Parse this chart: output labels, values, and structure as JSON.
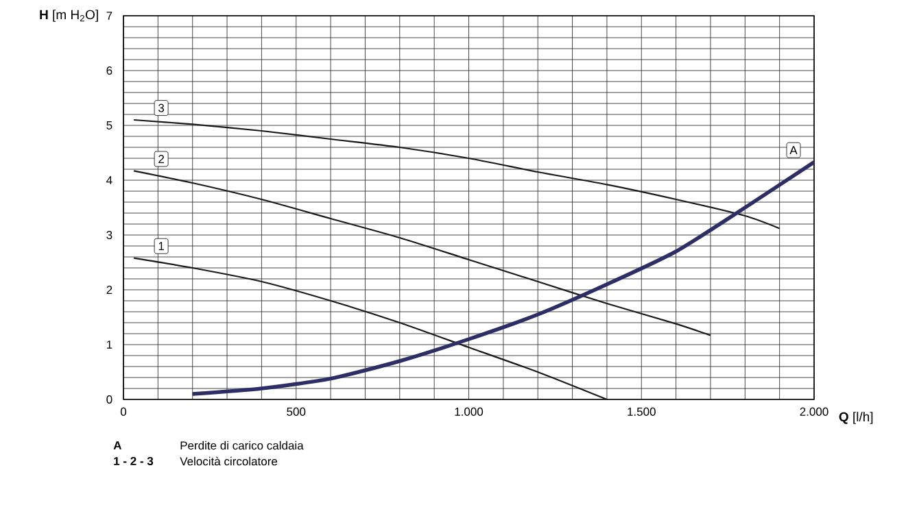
{
  "chart_data": {
    "type": "line",
    "xlabel": "**Q** [l/h]",
    "ylabel": "**H** [m H$_{2}$O]",
    "xlim": [
      0,
      2000
    ],
    "ylim": [
      0,
      7
    ],
    "xticks": [
      0,
      {
        "value": 100,
        "label": null
      },
      {
        "value": 200,
        "label": null
      },
      {
        "value": 300,
        "label": null
      },
      {
        "value": 400,
        "label": null
      },
      500,
      {
        "value": 600,
        "label": null
      },
      {
        "value": 700,
        "label": null
      },
      {
        "value": 800,
        "label": null
      },
      {
        "value": 900,
        "label": null
      },
      {
        "value": 1000,
        "label": "1.000"
      },
      {
        "value": 1100,
        "label": null
      },
      {
        "value": 1200,
        "label": null
      },
      {
        "value": 1300,
        "label": null
      },
      {
        "value": 1400,
        "label": null
      },
      {
        "value": 1500,
        "label": "1.500"
      },
      {
        "value": 1600,
        "label": null
      },
      {
        "value": 1700,
        "label": null
      },
      {
        "value": 1800,
        "label": null
      },
      {
        "value": 1900,
        "label": null
      },
      {
        "value": 2000,
        "label": "2.000"
      }
    ],
    "yticks": [
      0,
      {
        "value": 0.2,
        "label": null
      },
      {
        "value": 0.4,
        "label": null
      },
      {
        "value": 0.6,
        "label": null
      },
      {
        "value": 0.8,
        "label": null
      },
      1,
      {
        "value": 1.2,
        "label": null
      },
      {
        "value": 1.4,
        "label": null
      },
      {
        "value": 1.6,
        "label": null
      },
      {
        "value": 1.8,
        "label": null
      },
      2,
      {
        "value": 2.2,
        "label": null
      },
      {
        "value": 2.4,
        "label": null
      },
      {
        "value": 2.6,
        "label": null
      },
      {
        "value": 2.8,
        "label": null
      },
      3,
      {
        "value": 3.2,
        "label": null
      },
      {
        "value": 3.4,
        "label": null
      },
      {
        "value": 3.6,
        "label": null
      },
      {
        "value": 3.8,
        "label": null
      },
      4,
      {
        "value": 4.2,
        "label": null
      },
      {
        "value": 4.4,
        "label": null
      },
      {
        "value": 4.6,
        "label": null
      },
      {
        "value": 4.8,
        "label": null
      },
      5,
      {
        "value": 5.2,
        "label": null
      },
      {
        "value": 5.4,
        "label": null
      },
      {
        "value": 5.6,
        "label": null
      },
      {
        "value": 5.8,
        "label": null
      },
      6,
      {
        "value": 6.2,
        "label": null
      },
      {
        "value": 6.4,
        "label": null
      },
      {
        "value": 6.6,
        "label": null
      },
      {
        "value": 6.8,
        "label": null
      },
      7
    ],
    "grid": true,
    "marker": "none",
    "line_style": "solid",
    "series": [
      {
        "name": "1",
        "color": "#1a1a1a",
        "x": [
          30,
          200,
          400,
          600,
          800,
          1000,
          1200,
          1400
        ],
        "values": [
          2.58,
          2.4,
          2.15,
          1.8,
          1.4,
          0.95,
          0.5,
          0
        ]
      },
      {
        "name": "2",
        "color": "#1a1a1a",
        "x": [
          30,
          200,
          400,
          600,
          800,
          1000,
          1200,
          1400,
          1600,
          1700
        ],
        "values": [
          4.17,
          3.95,
          3.65,
          3.3,
          2.95,
          2.55,
          2.15,
          1.75,
          1.38,
          1.17
        ]
      },
      {
        "name": "3",
        "color": "#1a1a1a",
        "x": [
          30,
          200,
          400,
          600,
          800,
          1000,
          1200,
          1400,
          1600,
          1800,
          1900
        ],
        "values": [
          5.1,
          5.02,
          4.9,
          4.75,
          4.6,
          4.4,
          4.15,
          3.92,
          3.65,
          3.35,
          3.12
        ]
      },
      {
        "name": "A",
        "color": "#2e2e66",
        "x": [
          200,
          400,
          600,
          800,
          1000,
          1200,
          1400,
          1600,
          1800,
          2000
        ],
        "values": [
          0.1,
          0.2,
          0.38,
          0.7,
          1.1,
          1.55,
          2.1,
          2.7,
          3.5,
          4.33
        ]
      }
    ],
    "annotations": [
      "A",
      "Perdite di carico caldaia",
      "1 - 2 - 3",
      "Velocità circolatore"
    ]
  }
}
